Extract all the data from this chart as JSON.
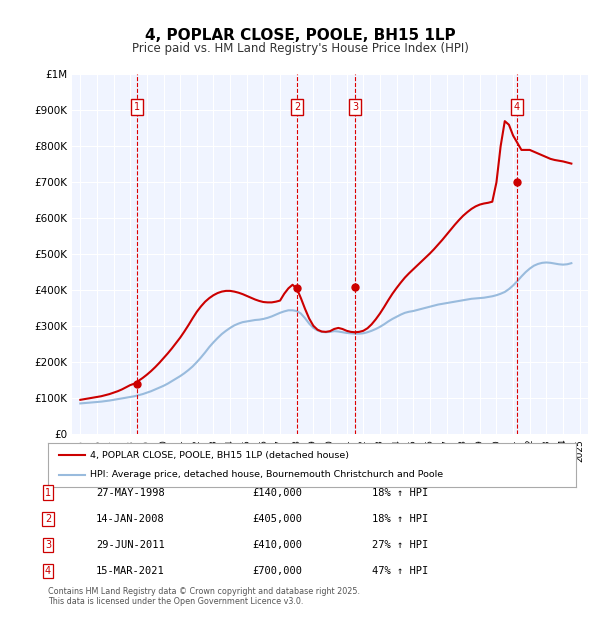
{
  "title": "4, POPLAR CLOSE, POOLE, BH15 1LP",
  "subtitle": "Price paid vs. HM Land Registry's House Price Index (HPI)",
  "footer_line1": "Contains HM Land Registry data © Crown copyright and database right 2025.",
  "footer_line2": "This data is licensed under the Open Government Licence v3.0.",
  "legend_red": "4, POPLAR CLOSE, POOLE, BH15 1LP (detached house)",
  "legend_blue": "HPI: Average price, detached house, Bournemouth Christchurch and Poole",
  "transactions": [
    {
      "num": 1,
      "date": "27-MAY-1998",
      "price": 140000,
      "hpi_pct": "18%",
      "year": 1998.4
    },
    {
      "num": 2,
      "date": "14-JAN-2008",
      "price": 405000,
      "hpi_pct": "18%",
      "year": 2008.04
    },
    {
      "num": 3,
      "date": "29-JUN-2011",
      "price": 410000,
      "hpi_pct": "27%",
      "year": 2011.5
    },
    {
      "num": 4,
      "date": "15-MAR-2021",
      "price": 700000,
      "hpi_pct": "47%",
      "year": 2021.21
    }
  ],
  "ylim": [
    0,
    1000000
  ],
  "yticks": [
    0,
    100000,
    200000,
    300000,
    400000,
    500000,
    600000,
    700000,
    800000,
    900000,
    1000000
  ],
  "ytick_labels": [
    "£0",
    "£100K",
    "£200K",
    "£300K",
    "£400K",
    "£500K",
    "£600K",
    "£700K",
    "£800K",
    "£900K",
    "£1M"
  ],
  "xlim_start": 1994.5,
  "xlim_end": 2025.5,
  "bg_color": "#dce9f8",
  "plot_bg": "#f0f4ff",
  "red_color": "#cc0000",
  "blue_color": "#99bbdd",
  "grid_color": "#ffffff",
  "vline_color": "#dd0000",
  "box_color": "#cc0000",
  "hpi_data_x": [
    1995,
    1995.25,
    1995.5,
    1995.75,
    1996,
    1996.25,
    1996.5,
    1996.75,
    1997,
    1997.25,
    1997.5,
    1997.75,
    1998,
    1998.25,
    1998.5,
    1998.75,
    1999,
    1999.25,
    1999.5,
    1999.75,
    2000,
    2000.25,
    2000.5,
    2000.75,
    2001,
    2001.25,
    2001.5,
    2001.75,
    2002,
    2002.25,
    2002.5,
    2002.75,
    2003,
    2003.25,
    2003.5,
    2003.75,
    2004,
    2004.25,
    2004.5,
    2004.75,
    2005,
    2005.25,
    2005.5,
    2005.75,
    2006,
    2006.25,
    2006.5,
    2006.75,
    2007,
    2007.25,
    2007.5,
    2007.75,
    2008,
    2008.25,
    2008.5,
    2008.75,
    2009,
    2009.25,
    2009.5,
    2009.75,
    2010,
    2010.25,
    2010.5,
    2010.75,
    2011,
    2011.25,
    2011.5,
    2011.75,
    2012,
    2012.25,
    2012.5,
    2012.75,
    2013,
    2013.25,
    2013.5,
    2013.75,
    2014,
    2014.25,
    2014.5,
    2014.75,
    2015,
    2015.25,
    2015.5,
    2015.75,
    2016,
    2016.25,
    2016.5,
    2016.75,
    2017,
    2017.25,
    2017.5,
    2017.75,
    2018,
    2018.25,
    2018.5,
    2018.75,
    2019,
    2019.25,
    2019.5,
    2019.75,
    2020,
    2020.25,
    2020.5,
    2020.75,
    2021,
    2021.25,
    2021.5,
    2021.75,
    2022,
    2022.25,
    2022.5,
    2022.75,
    2023,
    2023.25,
    2023.5,
    2023.75,
    2024,
    2024.25,
    2024.5
  ],
  "hpi_data_y": [
    85000,
    86000,
    87000,
    88000,
    89000,
    90000,
    91500,
    93000,
    95000,
    97000,
    99000,
    101000,
    103000,
    105000,
    108000,
    111000,
    115000,
    119000,
    124000,
    129000,
    134000,
    140000,
    147000,
    154000,
    161000,
    169000,
    178000,
    188000,
    200000,
    213000,
    227000,
    242000,
    255000,
    267000,
    278000,
    287000,
    295000,
    302000,
    307000,
    311000,
    313000,
    315000,
    317000,
    318000,
    320000,
    323000,
    327000,
    332000,
    337000,
    341000,
    344000,
    344000,
    342000,
    335000,
    322000,
    307000,
    295000,
    288000,
    284000,
    283000,
    284000,
    286000,
    285000,
    283000,
    281000,
    280000,
    279000,
    279000,
    280000,
    283000,
    287000,
    292000,
    298000,
    305000,
    313000,
    320000,
    326000,
    332000,
    337000,
    340000,
    342000,
    345000,
    348000,
    351000,
    354000,
    357000,
    360000,
    362000,
    364000,
    366000,
    368000,
    370000,
    372000,
    374000,
    376000,
    377000,
    378000,
    379000,
    381000,
    383000,
    386000,
    390000,
    395000,
    403000,
    413000,
    425000,
    438000,
    450000,
    460000,
    468000,
    473000,
    476000,
    477000,
    476000,
    474000,
    472000,
    471000,
    472000,
    475000
  ],
  "red_data_x": [
    1995,
    1995.25,
    1995.5,
    1995.75,
    1996,
    1996.25,
    1996.5,
    1996.75,
    1997,
    1997.25,
    1997.5,
    1997.75,
    1998,
    1998.25,
    1998.5,
    1998.75,
    1999,
    1999.25,
    1999.5,
    1999.75,
    2000,
    2000.25,
    2000.5,
    2000.75,
    2001,
    2001.25,
    2001.5,
    2001.75,
    2002,
    2002.25,
    2002.5,
    2002.75,
    2003,
    2003.25,
    2003.5,
    2003.75,
    2004,
    2004.25,
    2004.5,
    2004.75,
    2005,
    2005.25,
    2005.5,
    2005.75,
    2006,
    2006.25,
    2006.5,
    2006.75,
    2007,
    2007.25,
    2007.5,
    2007.75,
    2008,
    2008.25,
    2008.5,
    2008.75,
    2009,
    2009.25,
    2009.5,
    2009.75,
    2010,
    2010.25,
    2010.5,
    2010.75,
    2011,
    2011.25,
    2011.5,
    2011.75,
    2012,
    2012.25,
    2012.5,
    2012.75,
    2013,
    2013.25,
    2013.5,
    2013.75,
    2014,
    2014.25,
    2014.5,
    2014.75,
    2015,
    2015.25,
    2015.5,
    2015.75,
    2016,
    2016.25,
    2016.5,
    2016.75,
    2017,
    2017.25,
    2017.5,
    2017.75,
    2018,
    2018.25,
    2018.5,
    2018.75,
    2019,
    2019.25,
    2019.5,
    2019.75,
    2020,
    2020.25,
    2020.5,
    2020.75,
    2021,
    2021.25,
    2021.5,
    2021.75,
    2022,
    2022.25,
    2022.5,
    2022.75,
    2023,
    2023.25,
    2023.5,
    2023.75,
    2024,
    2024.25,
    2024.5
  ],
  "red_data_y": [
    95000,
    97000,
    99000,
    101000,
    103000,
    105000,
    108000,
    111000,
    115000,
    119000,
    124000,
    130000,
    136000,
    140000,
    148000,
    156000,
    165000,
    175000,
    186000,
    198000,
    211000,
    224000,
    238000,
    253000,
    268000,
    285000,
    303000,
    322000,
    340000,
    355000,
    368000,
    378000,
    386000,
    392000,
    396000,
    398000,
    398000,
    396000,
    393000,
    389000,
    384000,
    379000,
    374000,
    370000,
    367000,
    366000,
    366000,
    368000,
    371000,
    390000,
    405000,
    415000,
    405000,
    378000,
    348000,
    321000,
    301000,
    290000,
    285000,
    284000,
    286000,
    292000,
    295000,
    292000,
    287000,
    284000,
    283000,
    284000,
    287000,
    294000,
    305000,
    319000,
    335000,
    353000,
    372000,
    390000,
    406000,
    421000,
    435000,
    447000,
    458000,
    469000,
    480000,
    491000,
    502000,
    514000,
    527000,
    540000,
    554000,
    568000,
    582000,
    595000,
    607000,
    617000,
    626000,
    633000,
    638000,
    641000,
    643000,
    646000,
    700000,
    800000,
    870000,
    860000,
    830000,
    810000,
    790000,
    790000,
    790000,
    785000,
    780000,
    775000,
    770000,
    765000,
    762000,
    760000,
    758000,
    755000,
    752000
  ]
}
